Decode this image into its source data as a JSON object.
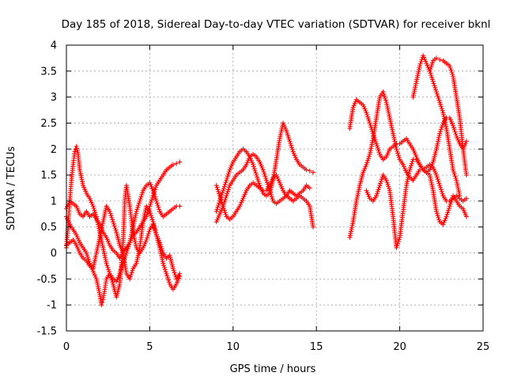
{
  "chart_data": {
    "type": "scatter",
    "title": "Day 185 of 2018, Sidereal Day-to-day VTEC variation (SDTVAR) for receiver bknl",
    "xlabel": "GPS time / hours",
    "ylabel": "SDTVAR / TECUs",
    "xlim": [
      0,
      25
    ],
    "ylim": [
      -1.5,
      4
    ],
    "xticks": [
      "0",
      "5",
      "10",
      "15",
      "20",
      "25"
    ],
    "yticks": [
      "-1.5",
      "-1",
      "-0.5",
      "0",
      "0.5",
      "1",
      "1.5",
      "2",
      "2.5",
      "3",
      "3.5",
      "4"
    ],
    "grid": true,
    "marker": "+",
    "color": "#ff0000",
    "series": [
      {
        "x": [
          0,
          0.2,
          0.4,
          0.6,
          0.8,
          1.0,
          1.2,
          1.4,
          1.6,
          1.8,
          2.0,
          2.2,
          2.4,
          2.6,
          2.8,
          3.0,
          3.2,
          3.4,
          3.6,
          3.8,
          4.0,
          4.2,
          4.4,
          4.6,
          4.8,
          5.0,
          5.2,
          5.4,
          5.6,
          5.8,
          6.0,
          6.2,
          6.4,
          6.6,
          6.8
        ],
        "y": [
          0.85,
          1.0,
          0.95,
          0.9,
          0.75,
          0.7,
          0.8,
          0.7,
          0.75,
          0.65,
          0.55,
          0.4,
          0.3,
          0.15,
          0.05,
          0.0,
          -0.1,
          0.0,
          0.1,
          0.2,
          0.5,
          0.8,
          1.0,
          1.2,
          1.3,
          1.35,
          1.2,
          1.0,
          0.8,
          0.7,
          0.75,
          0.8,
          0.85,
          0.9,
          0.9
        ]
      },
      {
        "x": [
          0,
          0.1,
          0.2,
          0.3,
          0.4,
          0.5,
          0.6,
          0.7,
          0.8,
          1.0,
          1.2,
          1.4,
          1.6,
          1.8,
          2.0,
          2.2,
          2.4,
          2.6,
          2.8,
          3.0,
          3.2,
          3.4,
          3.6,
          3.8,
          4.0,
          4.2,
          4.4,
          4.6,
          4.8,
          5.0,
          5.2,
          5.4,
          5.6,
          5.8,
          6.0,
          6.2,
          6.4,
          6.6,
          6.8
        ],
        "y": [
          0.1,
          0.5,
          1.0,
          1.4,
          1.7,
          1.95,
          2.05,
          1.9,
          1.6,
          1.3,
          1.15,
          1.05,
          0.9,
          0.7,
          0.4,
          0.1,
          -0.2,
          -0.4,
          -0.5,
          -0.55,
          -0.4,
          -0.2,
          0.0,
          0.2,
          0.35,
          0.4,
          0.5,
          0.6,
          0.7,
          0.9,
          1.1,
          1.3,
          1.4,
          1.5,
          1.6,
          1.65,
          1.7,
          1.72,
          1.75
        ]
      },
      {
        "x": [
          0,
          0.2,
          0.4,
          0.6,
          0.8,
          1.0,
          1.2,
          1.4,
          1.6,
          1.8,
          2.0,
          2.1,
          2.2,
          2.3,
          2.4,
          2.6,
          2.8,
          3.0,
          3.2,
          3.4,
          3.5,
          3.6,
          3.8,
          4.0,
          4.2,
          4.4,
          4.6,
          4.8,
          5.0,
          5.2,
          5.4,
          5.6,
          5.8,
          6.0,
          6.2,
          6.4,
          6.6,
          6.8
        ],
        "y": [
          0.7,
          0.55,
          0.45,
          0.35,
          0.2,
          0.1,
          0.0,
          -0.2,
          -0.35,
          -0.5,
          -0.8,
          -1.0,
          -0.9,
          -0.7,
          -0.5,
          -0.4,
          -0.6,
          -0.85,
          -0.6,
          0.2,
          1.0,
          1.3,
          0.9,
          0.4,
          0.1,
          0.0,
          0.1,
          0.25,
          0.45,
          0.55,
          0.35,
          0.1,
          -0.2,
          -0.4,
          -0.6,
          -0.7,
          -0.6,
          -0.45
        ]
      },
      {
        "x": [
          0,
          0.2,
          0.4,
          0.6,
          0.8,
          1.0,
          1.2,
          1.4,
          1.6,
          1.8,
          2.0,
          2.2,
          2.4,
          2.6,
          2.8,
          3.0,
          3.2,
          3.4,
          3.6,
          3.8,
          4.0,
          4.2,
          4.4,
          4.6,
          4.8,
          5.0,
          5.2,
          5.4,
          5.6,
          5.8,
          6.0,
          6.2,
          6.4,
          6.6,
          6.8
        ],
        "y": [
          0.15,
          0.2,
          0.25,
          0.15,
          0.0,
          -0.1,
          -0.15,
          -0.25,
          -0.3,
          0.0,
          0.3,
          0.6,
          0.9,
          0.8,
          0.6,
          0.4,
          0.15,
          0.0,
          -0.4,
          -0.5,
          -0.3,
          -0.2,
          0.1,
          0.6,
          0.9,
          0.8,
          0.6,
          0.35,
          0.2,
          0.0,
          -0.1,
          -0.05,
          -0.3,
          -0.5,
          -0.4
        ]
      },
      {
        "x": [
          9.0,
          9.2,
          9.4,
          9.6,
          9.8,
          10.0,
          10.2,
          10.4,
          10.6,
          10.8,
          11.0,
          11.2,
          11.4,
          11.6,
          11.8,
          12.0,
          12.2,
          12.4,
          12.6,
          12.8,
          13.0,
          13.2,
          13.4,
          13.6,
          13.8,
          14.0,
          14.2,
          14.4,
          14.6,
          14.8
        ],
        "y": [
          0.8,
          1.0,
          1.2,
          1.4,
          1.6,
          1.75,
          1.85,
          1.95,
          2.0,
          1.95,
          1.85,
          1.7,
          1.5,
          1.3,
          1.15,
          1.1,
          1.15,
          1.4,
          1.8,
          2.2,
          2.5,
          2.35,
          2.15,
          1.95,
          1.8,
          1.7,
          1.65,
          1.6,
          1.58,
          1.55
        ]
      },
      {
        "x": [
          9.0,
          9.2,
          9.4,
          9.6,
          9.8,
          10.0,
          10.2,
          10.4,
          10.6,
          10.8,
          11.0,
          11.2,
          11.4,
          11.6,
          11.8,
          12.0,
          12.2,
          12.4,
          12.6,
          12.8,
          13.0,
          13.2,
          13.4,
          13.6,
          13.8,
          14.0,
          14.2,
          14.4,
          14.6,
          14.8
        ],
        "y": [
          1.3,
          1.1,
          0.9,
          0.7,
          0.65,
          0.7,
          0.8,
          0.9,
          1.05,
          1.2,
          1.3,
          1.35,
          1.3,
          1.25,
          1.2,
          1.2,
          1.3,
          1.45,
          1.5,
          1.35,
          1.2,
          1.1,
          1.05,
          1.0,
          1.05,
          1.1,
          1.05,
          1.0,
          0.9,
          0.5
        ]
      },
      {
        "x": [
          9.0,
          9.2,
          9.4,
          9.6,
          9.8,
          10.0,
          10.2,
          10.4,
          10.6,
          10.8,
          11.0,
          11.2,
          11.4,
          11.6,
          11.8,
          12.0,
          12.2,
          12.4,
          12.6,
          12.8,
          13.0,
          13.2,
          13.4,
          13.6,
          13.8,
          14.0,
          14.2,
          14.4,
          14.6
        ],
        "y": [
          0.6,
          0.75,
          0.9,
          1.1,
          1.3,
          1.4,
          1.5,
          1.55,
          1.6,
          1.7,
          1.85,
          1.9,
          1.85,
          1.75,
          1.6,
          1.4,
          1.2,
          1.0,
          0.95,
          1.0,
          1.05,
          1.1,
          1.2,
          1.15,
          1.1,
          1.15,
          1.2,
          1.3,
          1.25
        ]
      },
      {
        "x": [
          17.0,
          17.2,
          17.4,
          17.6,
          17.8,
          18.0,
          18.2,
          18.4,
          18.6,
          18.8,
          19.0,
          19.2,
          19.4,
          19.6,
          19.8,
          20.0,
          20.2,
          20.4,
          20.6,
          20.8,
          21.0,
          21.2,
          21.4,
          21.6,
          21.8,
          22.0,
          22.2,
          22.4,
          22.6,
          22.8,
          23.0,
          23.2,
          23.4,
          23.6,
          23.8,
          24.0
        ],
        "y": [
          2.4,
          2.8,
          2.95,
          2.9,
          2.85,
          2.7,
          2.5,
          2.3,
          2.1,
          1.9,
          1.8,
          1.85,
          2.0,
          2.05,
          2.1,
          2.1,
          2.15,
          2.2,
          2.1,
          2.0,
          1.85,
          1.7,
          1.6,
          1.55,
          1.6,
          1.75,
          2.0,
          2.3,
          2.5,
          2.6,
          2.6,
          2.45,
          2.25,
          2.1,
          2.0,
          2.15
        ]
      },
      {
        "x": [
          17.0,
          17.2,
          17.4,
          17.6,
          17.8,
          18.0,
          18.2,
          18.4,
          18.6,
          18.8,
          19.0,
          19.2,
          19.4,
          19.6,
          19.8,
          20.0,
          20.2,
          20.4,
          20.6,
          20.8,
          21.0,
          21.2,
          21.4,
          21.6,
          21.8,
          22.0,
          22.2,
          22.4,
          22.6,
          22.8,
          23.0,
          23.2,
          23.4,
          23.6,
          23.8,
          24.0
        ],
        "y": [
          0.3,
          0.6,
          1.0,
          1.3,
          1.55,
          1.7,
          1.9,
          2.2,
          2.6,
          3.0,
          3.1,
          2.9,
          2.6,
          2.3,
          2.0,
          1.8,
          1.7,
          1.55,
          1.45,
          1.4,
          1.5,
          1.6,
          1.6,
          1.65,
          1.7,
          1.65,
          1.5,
          1.3,
          1.1,
          1.0,
          1.0,
          1.05,
          1.1,
          1.05,
          1.0,
          1.05
        ]
      },
      {
        "x": [
          18.0,
          18.2,
          18.4,
          18.6,
          18.8,
          19.0,
          19.2,
          19.4,
          19.6,
          19.8,
          20.0,
          20.2,
          20.4,
          20.6,
          20.8,
          21.0,
          21.2,
          21.4,
          21.6,
          21.8,
          22.0,
          22.2,
          22.4,
          22.6,
          22.8,
          23.0,
          23.2,
          23.4,
          23.6,
          23.8,
          24.0
        ],
        "y": [
          1.2,
          1.05,
          1.0,
          1.1,
          1.3,
          1.5,
          1.4,
          1.2,
          0.7,
          0.1,
          0.3,
          0.8,
          1.3,
          1.6,
          1.8,
          1.8,
          1.7,
          1.6,
          1.55,
          1.5,
          1.2,
          0.8,
          0.6,
          0.55,
          0.7,
          0.9,
          1.1,
          1.0,
          0.9,
          0.85,
          0.7
        ]
      },
      {
        "x": [
          20.8,
          21.0,
          21.2,
          21.4,
          21.6,
          21.8,
          22.0,
          22.2,
          22.4,
          22.6,
          22.8,
          23.0,
          23.2,
          23.4,
          23.6
        ],
        "y": [
          3.0,
          3.3,
          3.6,
          3.8,
          3.65,
          3.5,
          3.3,
          3.1,
          2.9,
          2.7,
          2.4,
          2.0,
          1.6,
          1.4,
          1.1
        ]
      },
      {
        "x": [
          21.8,
          22.0,
          22.2,
          22.4,
          22.6,
          22.8,
          23.0,
          23.2,
          23.4,
          23.6,
          23.8,
          24.0
        ],
        "y": [
          3.5,
          3.7,
          3.75,
          3.72,
          3.7,
          3.65,
          3.6,
          3.4,
          3.0,
          2.6,
          2.0,
          1.5
        ]
      }
    ]
  }
}
